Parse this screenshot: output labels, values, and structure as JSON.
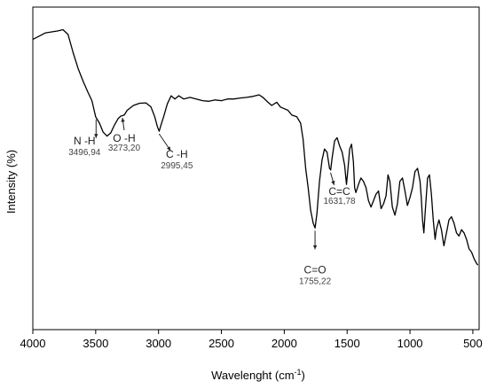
{
  "chart_data": {
    "type": "line",
    "title": "",
    "xlabel": "Wavelenght (cm",
    "xlabel_sup": "-1",
    "xlabel_end": ")",
    "ylabel": "Intensity (%)",
    "xlim": [
      4000,
      450
    ],
    "ylim": [
      0,
      100
    ],
    "x_reversed": true,
    "y_ticks_labeled": false,
    "grid": false,
    "xticks": [
      4000,
      3500,
      3000,
      2500,
      2000,
      1500,
      1000,
      500
    ],
    "xtick_labels": [
      "4000",
      "3500",
      "3000",
      "2500",
      "2000",
      "1500",
      "1000",
      "500"
    ],
    "series": [
      {
        "color": "#000000",
        "points": [
          [
            4000,
            90
          ],
          [
            3950,
            91
          ],
          [
            3900,
            92
          ],
          [
            3850,
            92.3
          ],
          [
            3800,
            92.6
          ],
          [
            3760,
            93
          ],
          [
            3720,
            91.5
          ],
          [
            3680,
            86
          ],
          [
            3640,
            81
          ],
          [
            3600,
            77
          ],
          [
            3560,
            73.5
          ],
          [
            3530,
            71
          ],
          [
            3500,
            66
          ],
          [
            3470,
            64
          ],
          [
            3440,
            61.2
          ],
          [
            3410,
            60
          ],
          [
            3380,
            61
          ],
          [
            3350,
            63.5
          ],
          [
            3320,
            65.5
          ],
          [
            3300,
            66.2
          ],
          [
            3273,
            66.5
          ],
          [
            3250,
            68
          ],
          [
            3200,
            69.5
          ],
          [
            3150,
            70.2
          ],
          [
            3100,
            70.3
          ],
          [
            3060,
            69
          ],
          [
            3030,
            66
          ],
          [
            3010,
            63
          ],
          [
            2995,
            61.5
          ],
          [
            2980,
            63.5
          ],
          [
            2960,
            66
          ],
          [
            2930,
            70
          ],
          [
            2900,
            72.5
          ],
          [
            2870,
            71.5
          ],
          [
            2840,
            72.5
          ],
          [
            2800,
            71.5
          ],
          [
            2750,
            72
          ],
          [
            2700,
            71.5
          ],
          [
            2650,
            71
          ],
          [
            2600,
            70.8
          ],
          [
            2550,
            71.2
          ],
          [
            2500,
            71
          ],
          [
            2450,
            71.5
          ],
          [
            2400,
            71.5
          ],
          [
            2350,
            71.8
          ],
          [
            2300,
            72
          ],
          [
            2250,
            72.3
          ],
          [
            2200,
            72.8
          ],
          [
            2170,
            72
          ],
          [
            2130,
            70.5
          ],
          [
            2100,
            69.5
          ],
          [
            2060,
            70.5
          ],
          [
            2030,
            69
          ],
          [
            2000,
            68.5
          ],
          [
            1970,
            68
          ],
          [
            1940,
            66.5
          ],
          [
            1900,
            66
          ],
          [
            1870,
            64
          ],
          [
            1850,
            59
          ],
          [
            1830,
            50
          ],
          [
            1810,
            44
          ],
          [
            1790,
            37
          ],
          [
            1770,
            33
          ],
          [
            1755,
            31.5
          ],
          [
            1740,
            36
          ],
          [
            1720,
            46
          ],
          [
            1700,
            52.5
          ],
          [
            1680,
            56
          ],
          [
            1660,
            55
          ],
          [
            1640,
            50
          ],
          [
            1631,
            49.5
          ],
          [
            1620,
            53
          ],
          [
            1600,
            58.5
          ],
          [
            1580,
            59.5
          ],
          [
            1560,
            57
          ],
          [
            1540,
            55
          ],
          [
            1520,
            51
          ],
          [
            1505,
            45
          ],
          [
            1495,
            49
          ],
          [
            1480,
            56
          ],
          [
            1465,
            57.5
          ],
          [
            1450,
            52
          ],
          [
            1440,
            44
          ],
          [
            1430,
            42.5
          ],
          [
            1410,
            45
          ],
          [
            1390,
            47
          ],
          [
            1370,
            46
          ],
          [
            1350,
            44
          ],
          [
            1330,
            40
          ],
          [
            1310,
            38
          ],
          [
            1290,
            40
          ],
          [
            1270,
            42
          ],
          [
            1250,
            43
          ],
          [
            1230,
            37.5
          ],
          [
            1210,
            39
          ],
          [
            1190,
            41.5
          ],
          [
            1175,
            48
          ],
          [
            1160,
            46
          ],
          [
            1140,
            38
          ],
          [
            1120,
            35.5
          ],
          [
            1100,
            39
          ],
          [
            1080,
            46
          ],
          [
            1060,
            47
          ],
          [
            1040,
            43
          ],
          [
            1020,
            38.5
          ],
          [
            1000,
            41
          ],
          [
            980,
            44
          ],
          [
            960,
            49
          ],
          [
            940,
            50
          ],
          [
            920,
            46
          ],
          [
            910,
            41
          ],
          [
            900,
            34
          ],
          [
            890,
            30
          ],
          [
            880,
            36
          ],
          [
            860,
            47
          ],
          [
            845,
            48
          ],
          [
            830,
            42
          ],
          [
            815,
            34
          ],
          [
            800,
            28
          ],
          [
            790,
            31
          ],
          [
            770,
            34
          ],
          [
            750,
            31
          ],
          [
            730,
            26
          ],
          [
            710,
            30
          ],
          [
            690,
            34
          ],
          [
            670,
            35
          ],
          [
            650,
            33
          ],
          [
            630,
            30
          ],
          [
            610,
            29
          ],
          [
            590,
            31
          ],
          [
            570,
            30
          ],
          [
            550,
            28
          ],
          [
            530,
            25
          ],
          [
            510,
            24
          ],
          [
            490,
            22
          ],
          [
            470,
            20.5
          ],
          [
            460,
            20
          ]
        ]
      }
    ],
    "annotations": [
      {
        "group": "N -H",
        "wavenumber": "3496,94",
        "x": 3496.94,
        "y": 66
      },
      {
        "group": "O -H",
        "wavenumber": "3273,20",
        "x": 3273.2,
        "y": 66.5
      },
      {
        "group": "C -H",
        "wavenumber": "2995,45",
        "x": 2995.45,
        "y": 61.5
      },
      {
        "group": "C=O",
        "wavenumber": "1755,22",
        "x": 1755.22,
        "y": 31.5
      },
      {
        "group": "C=C",
        "wavenumber": "1631,78",
        "x": 1631.78,
        "y": 49.5
      }
    ]
  }
}
